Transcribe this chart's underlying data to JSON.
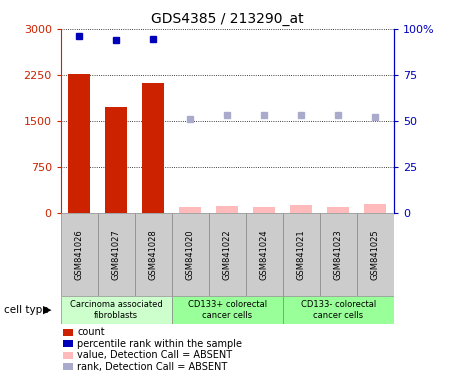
{
  "title": "GDS4385 / 213290_at",
  "samples": [
    "GSM841026",
    "GSM841027",
    "GSM841028",
    "GSM841020",
    "GSM841022",
    "GSM841024",
    "GSM841021",
    "GSM841023",
    "GSM841025"
  ],
  "count_values": [
    2270,
    1720,
    2120,
    95,
    120,
    100,
    135,
    105,
    155
  ],
  "count_absent": [
    false,
    false,
    false,
    true,
    true,
    true,
    true,
    true,
    true
  ],
  "rank_values": [
    96.0,
    94.0,
    94.3,
    51.0,
    53.0,
    53.0,
    53.0,
    53.3,
    52.0
  ],
  "rank_absent": [
    false,
    false,
    false,
    true,
    true,
    true,
    true,
    true,
    true
  ],
  "ylim_left": [
    0,
    3000
  ],
  "ylim_right": [
    0,
    100
  ],
  "yticks_left": [
    0,
    750,
    1500,
    2250,
    3000
  ],
  "ytick_labels_left": [
    "0",
    "750",
    "1500",
    "2250",
    "3000"
  ],
  "yticks_right": [
    0,
    25,
    50,
    75,
    100
  ],
  "ytick_labels_right": [
    "0",
    "25",
    "50",
    "75",
    "100%"
  ],
  "bar_color_present": "#cc2200",
  "bar_color_absent": "#ffbbbb",
  "dot_color_present": "#0000bb",
  "dot_color_absent": "#aaaacc",
  "group_ranges": [
    [
      0,
      2
    ],
    [
      3,
      5
    ],
    [
      6,
      8
    ]
  ],
  "group_labels": [
    "Carcinoma associated\nfibroblasts",
    "CD133+ colorectal\ncancer cells",
    "CD133- colorectal\ncancer cells"
  ],
  "group_colors": [
    "#ccffcc",
    "#99ff99",
    "#99ff99"
  ],
  "legend_items": [
    {
      "label": "count",
      "color": "#cc2200"
    },
    {
      "label": "percentile rank within the sample",
      "color": "#0000bb"
    },
    {
      "label": "value, Detection Call = ABSENT",
      "color": "#ffbbbb"
    },
    {
      "label": "rank, Detection Call = ABSENT",
      "color": "#aaaacc"
    }
  ]
}
